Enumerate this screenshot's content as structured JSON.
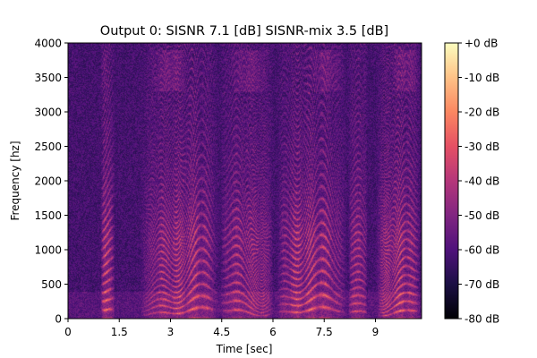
{
  "chart_data": {
    "type": "heatmap",
    "subtype": "spectrogram",
    "title": "Output 0: SISNR 7.1 [dB] SISNR-mix 3.5 [dB]",
    "xlabel": "Time [sec]",
    "ylabel": "Frequency [hz]",
    "xlim": [
      0,
      10.35
    ],
    "ylim": [
      0,
      4000
    ],
    "x_ticks": [
      0,
      1.5,
      3,
      4.5,
      6,
      7.5,
      9
    ],
    "x_tick_labels": [
      "0",
      "1.5",
      "3",
      "4.5",
      "6",
      "7.5",
      "9"
    ],
    "y_ticks": [
      0,
      500,
      1000,
      1500,
      2000,
      2500,
      3000,
      3500,
      4000
    ],
    "y_tick_labels": [
      "0",
      "500",
      "1000",
      "1500",
      "2000",
      "2500",
      "3000",
      "3500",
      "4000"
    ],
    "colorbar": {
      "colormap": "magma",
      "range": [
        -80,
        0
      ],
      "ticks": [
        0,
        -10,
        -20,
        -30,
        -40,
        -50,
        -60,
        -70,
        -80
      ],
      "tick_labels": [
        "+0 dB",
        "-10 dB",
        "-20 dB",
        "-30 dB",
        "-40 dB",
        "-50 dB",
        "-60 dB",
        "-70 dB",
        "-80 dB"
      ]
    },
    "background_level_db": -62,
    "speech_segments_sec": [
      [
        0.95,
        1.35
      ],
      [
        2.1,
        4.4
      ],
      [
        4.45,
        6.0
      ],
      [
        6.1,
        8.15
      ],
      [
        8.2,
        8.75
      ],
      [
        9.0,
        10.3
      ]
    ],
    "strong_harmonic_region_hz": [
      100,
      1200
    ],
    "grid": false,
    "legend": "none"
  }
}
